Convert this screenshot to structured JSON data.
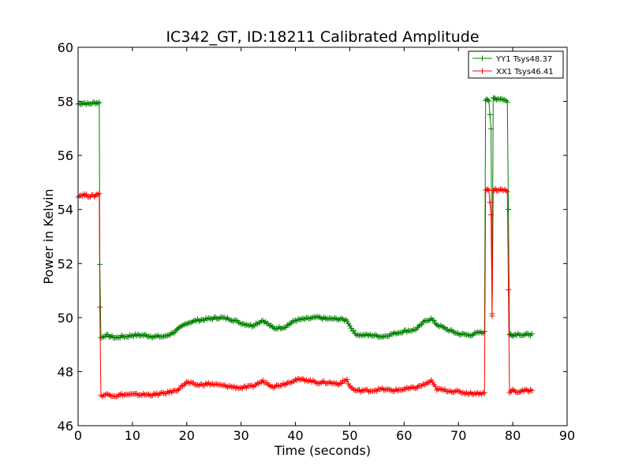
{
  "chart_data": {
    "type": "line",
    "title": "IC342_GT, ID:18211 Calibrated Amplitude",
    "xlabel": "Time (seconds)",
    "ylabel": "Power in Kelvin",
    "xlim": [
      0,
      90
    ],
    "ylim": [
      46,
      60
    ],
    "xticks": [
      "0",
      "10",
      "20",
      "30",
      "40",
      "50",
      "60",
      "70",
      "80",
      "90"
    ],
    "yticks": [
      "46",
      "48",
      "50",
      "52",
      "54",
      "56",
      "58",
      "60"
    ],
    "grid": false,
    "legend_position": "top-right",
    "marker": "+",
    "series": [
      {
        "name": "YY1 Tsys48.37",
        "color": "#008000",
        "x": [
          0,
          1,
          2,
          3,
          3.9,
          4.0,
          4.2,
          5,
          6,
          7,
          8,
          9,
          10,
          12,
          14,
          16,
          18,
          20,
          22,
          24,
          26,
          28,
          30,
          32,
          34,
          36,
          38,
          40,
          42,
          44,
          46,
          48,
          49.5,
          50,
          51,
          52,
          54,
          56,
          58,
          60,
          62,
          63,
          64,
          65,
          66,
          68,
          70,
          72,
          74,
          74.8,
          75.0,
          75.2,
          75.6,
          76.0,
          76.2,
          76.4,
          76.8,
          77,
          78,
          79,
          79.2,
          79.4,
          79.6,
          80,
          81,
          82,
          83.5
        ],
        "y": [
          57.9,
          57.95,
          57.9,
          57.95,
          57.95,
          52.0,
          49.25,
          49.35,
          49.3,
          49.25,
          49.3,
          49.3,
          49.35,
          49.35,
          49.3,
          49.3,
          49.5,
          49.8,
          49.9,
          49.95,
          50.0,
          49.95,
          49.8,
          49.7,
          49.9,
          49.6,
          49.65,
          49.9,
          49.95,
          50.0,
          49.95,
          49.95,
          49.9,
          49.7,
          49.4,
          49.35,
          49.35,
          49.3,
          49.4,
          49.5,
          49.55,
          49.7,
          49.9,
          49.95,
          49.75,
          49.55,
          49.4,
          49.35,
          49.45,
          49.45,
          58.05,
          58.1,
          58.05,
          57.0,
          50.1,
          58.1,
          58.1,
          58.1,
          58.1,
          58.0,
          54.0,
          49.35,
          49.4,
          49.35,
          49.4,
          49.35,
          49.4
        ]
      },
      {
        "name": "XX1 Tsys46.41",
        "color": "#ff0000",
        "x": [
          0,
          1,
          2,
          3,
          3.9,
          4.0,
          4.2,
          5,
          6,
          7,
          8,
          10,
          12,
          14,
          16,
          18,
          20,
          22,
          24,
          26,
          28,
          30,
          32,
          34,
          36,
          38,
          40,
          42,
          44,
          46,
          48,
          49.5,
          50,
          51,
          52,
          54,
          56,
          58,
          60,
          62,
          64,
          65,
          66,
          68,
          70,
          72,
          74,
          74.8,
          75.0,
          75.2,
          75.6,
          76.0,
          76.2,
          76.4,
          76.8,
          77,
          78,
          79,
          79.2,
          79.4,
          79.6,
          80,
          81,
          82,
          83.5
        ],
        "y": [
          54.5,
          54.55,
          54.5,
          54.5,
          54.6,
          50.4,
          47.1,
          47.15,
          47.15,
          47.1,
          47.15,
          47.15,
          47.15,
          47.15,
          47.2,
          47.3,
          47.6,
          47.5,
          47.55,
          47.5,
          47.45,
          47.4,
          47.45,
          47.65,
          47.45,
          47.55,
          47.7,
          47.7,
          47.6,
          47.6,
          47.55,
          47.7,
          47.45,
          47.3,
          47.3,
          47.3,
          47.35,
          47.3,
          47.35,
          47.4,
          47.55,
          47.65,
          47.35,
          47.3,
          47.25,
          47.2,
          47.2,
          47.2,
          54.75,
          54.75,
          54.7,
          53.8,
          50.05,
          54.7,
          54.75,
          54.7,
          54.75,
          54.7,
          51.0,
          47.25,
          47.25,
          47.3,
          47.25,
          47.3,
          47.3
        ]
      }
    ]
  }
}
